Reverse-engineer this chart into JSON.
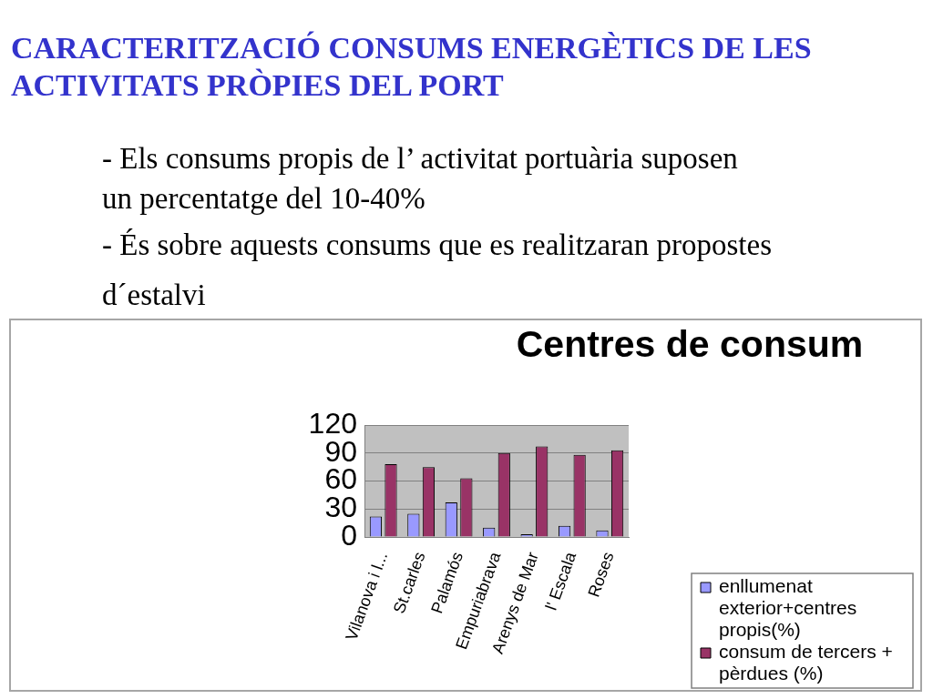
{
  "chart_data": {
    "type": "bar",
    "title": "Centres de consum",
    "annotations": [
      "CARACTERITZACIÓ CONSUMS ENERGÈTICS DE LES ACTIVITATS PRÒPIES DEL PORT",
      "- Els consums propis de l’ activitat portuària suposen un percentatge del 10-40%",
      "- És sobre aquests consums que es realitzaran propostes d´estalvi"
    ],
    "categories": [
      "Vilanova i l...",
      "St.carles",
      "Palamós",
      "Empuriabrava",
      "Arenys de Mar",
      "l' Escala",
      "Roses"
    ],
    "series": [
      {
        "name": "enllumenat exterior+centres propis(%)",
        "color": "#9999ff",
        "values": [
          22,
          25,
          37,
          10,
          3,
          12,
          7
        ]
      },
      {
        "name": "consum de tercers + pèrdues (%)",
        "color": "#993366",
        "values": [
          78,
          75,
          63,
          90,
          97,
          88,
          93
        ]
      }
    ],
    "ylim": [
      0,
      120
    ],
    "yticks": [
      0,
      30,
      60,
      90,
      120
    ],
    "grid": "y",
    "legend": "bottom right"
  }
}
